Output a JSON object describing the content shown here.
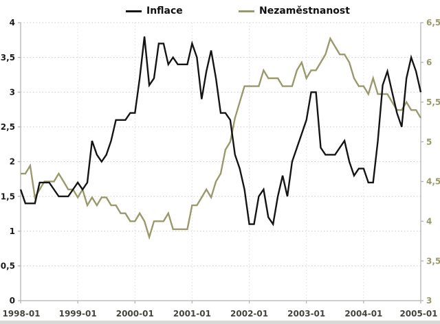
{
  "chart_data": {
    "type": "line",
    "title": "",
    "legend_position": "top",
    "grid": "dotted",
    "background_color": "#ffffff",
    "axis_line_color": "#b3b3b3",
    "h_gridline_color": "#c9c9c9",
    "v_gridline_color": "#dddddd",
    "x_axis": {
      "start": "1998-01",
      "end": "2005-01",
      "frequency": "monthly",
      "label_color": "#44443e",
      "ticks": [
        {
          "index": 0,
          "label": "1998-01"
        },
        {
          "index": 12,
          "label": "1999-01"
        },
        {
          "index": 24,
          "label": "2000-01"
        },
        {
          "index": 36,
          "label": "2001-01"
        },
        {
          "index": 48,
          "label": "2002-01"
        },
        {
          "index": 60,
          "label": "2003-01"
        },
        {
          "index": 72,
          "label": "2004-01"
        },
        {
          "index": 84,
          "label": "2005-01"
        }
      ]
    },
    "left_axis": {
      "min": 0,
      "max": 4,
      "step": 0.5,
      "label_color": "#1a1a1a",
      "ticks": [
        {
          "value": 0,
          "label": "0"
        },
        {
          "value": 0.5,
          "label": "0,5"
        },
        {
          "value": 1,
          "label": "1"
        },
        {
          "value": 1.5,
          "label": "1,5"
        },
        {
          "value": 2,
          "label": "2"
        },
        {
          "value": 2.5,
          "label": "2,5"
        },
        {
          "value": 3,
          "label": "3"
        },
        {
          "value": 3.5,
          "label": "3,5"
        },
        {
          "value": 4,
          "label": "4"
        }
      ]
    },
    "right_axis": {
      "min": 3,
      "max": 6.5,
      "step": 0.5,
      "label_color": "#99996B",
      "ticks": [
        {
          "value": 3,
          "label": "3"
        },
        {
          "value": 3.5,
          "label": "3,5"
        },
        {
          "value": 4,
          "label": "4"
        },
        {
          "value": 4.5,
          "label": "4,5"
        },
        {
          "value": 5,
          "label": "5"
        },
        {
          "value": 5.5,
          "label": "5,5"
        },
        {
          "value": 6,
          "label": "6"
        },
        {
          "value": 6.5,
          "label": "6,5"
        }
      ]
    },
    "series": [
      {
        "name": "Inflace",
        "axis": "left",
        "color": "#141414",
        "values": [
          1.6,
          1.4,
          1.4,
          1.4,
          1.7,
          1.7,
          1.7,
          1.6,
          1.5,
          1.5,
          1.5,
          1.6,
          1.7,
          1.6,
          1.7,
          2.3,
          2.1,
          2.0,
          2.1,
          2.3,
          2.6,
          2.6,
          2.6,
          2.7,
          2.7,
          3.2,
          3.8,
          3.1,
          3.2,
          3.7,
          3.7,
          3.4,
          3.5,
          3.4,
          3.4,
          3.4,
          3.7,
          3.5,
          2.9,
          3.3,
          3.6,
          3.2,
          2.7,
          2.7,
          2.6,
          2.1,
          1.9,
          1.6,
          1.1,
          1.1,
          1.5,
          1.6,
          1.2,
          1.1,
          1.5,
          1.8,
          1.5,
          2.0,
          2.2,
          2.4,
          2.6,
          3.0,
          3.0,
          2.2,
          2.1,
          2.1,
          2.1,
          2.2,
          2.3,
          2.0,
          1.8,
          1.9,
          1.9,
          1.7,
          1.7,
          2.3,
          3.1,
          3.3,
          3.0,
          2.7,
          2.5,
          3.2,
          3.5,
          3.3,
          3.0
        ]
      },
      {
        "name": "Nezaměstnanost",
        "axis": "right",
        "color": "#99996B",
        "values": [
          4.6,
          4.6,
          4.7,
          4.3,
          4.4,
          4.5,
          4.5,
          4.5,
          4.6,
          4.5,
          4.4,
          4.4,
          4.3,
          4.4,
          4.2,
          4.3,
          4.2,
          4.3,
          4.3,
          4.2,
          4.2,
          4.1,
          4.1,
          4.0,
          4.0,
          4.1,
          4.0,
          3.8,
          4.0,
          4.0,
          4.0,
          4.1,
          3.9,
          3.9,
          3.9,
          3.9,
          4.2,
          4.2,
          4.3,
          4.4,
          4.3,
          4.5,
          4.6,
          4.9,
          5.0,
          5.3,
          5.5,
          5.7,
          5.7,
          5.7,
          5.7,
          5.9,
          5.8,
          5.8,
          5.8,
          5.7,
          5.7,
          5.7,
          5.9,
          6.0,
          5.8,
          5.9,
          5.9,
          6.0,
          6.1,
          6.3,
          6.2,
          6.1,
          6.1,
          6.0,
          5.8,
          5.7,
          5.7,
          5.6,
          5.8,
          5.6,
          5.6,
          5.6,
          5.5,
          5.4,
          5.4,
          5.5,
          5.4,
          5.4,
          5.3
        ]
      }
    ]
  }
}
